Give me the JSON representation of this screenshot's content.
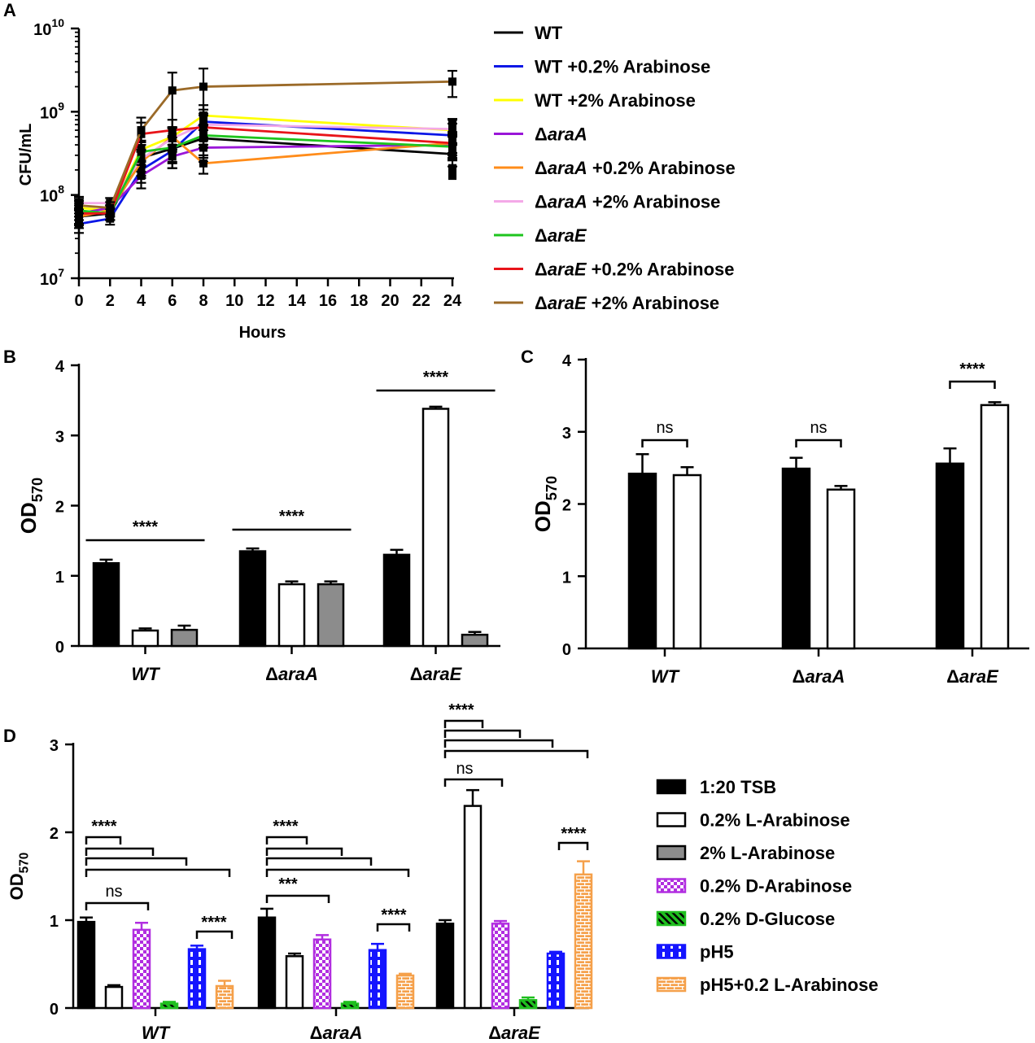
{
  "colors": {
    "black": "#000000",
    "white": "#ffffff",
    "gray": "#8c8c8c",
    "purple": "#b12ee0",
    "green": "#1fbf1f",
    "blue": "#1414ff",
    "orange": "#f5a04a",
    "WT": "#000000",
    "WT02": "#0b17e6",
    "WT2": "#ffff00",
    "A": "#9a16d8",
    "A02": "#ff8c1a",
    "A2": "#f4a9e8",
    "E": "#1ec41e",
    "E02": "#e8141a",
    "E2": "#9b6a28"
  },
  "chart_data": [
    {
      "panel": "A",
      "type": "line",
      "yscale": "log",
      "xlabel": "Hours",
      "ylabel": "CFU/mL",
      "xlim": [
        0,
        24
      ],
      "ylim": [
        10000000,
        10000000000
      ],
      "xticks": [
        "0",
        "2",
        "4",
        "6",
        "8",
        "10",
        "12",
        "14",
        "16",
        "18",
        "20",
        "22",
        "24"
      ],
      "yticks": [
        {
          "base": "10",
          "exp": "7"
        },
        {
          "base": "10",
          "exp": "8"
        },
        {
          "base": "10",
          "exp": "9"
        },
        {
          "base": "10",
          "exp": "10"
        }
      ],
      "x": [
        0,
        2,
        4,
        6,
        8,
        24
      ],
      "series": [
        {
          "name": "WT",
          "italic": "",
          "rest": "",
          "color": "WT",
          "values": [
            55000000,
            60000000,
            280000000,
            360000000,
            480000000,
            310000000
          ],
          "err": [
            15000000,
            10000000,
            120000000,
            150000000,
            200000000,
            90000000
          ]
        },
        {
          "name": "WT +0.2% Arabinose",
          "italic": "",
          "rest": "",
          "color": "WT02",
          "values": [
            45000000,
            52000000,
            200000000,
            340000000,
            760000000,
            520000000
          ],
          "err": [
            10000000,
            8000000,
            60000000,
            100000000,
            300000000,
            200000000
          ]
        },
        {
          "name": "WT +2% Arabinose",
          "italic": "",
          "rest": "",
          "color": "WT2",
          "values": [
            70000000,
            65000000,
            350000000,
            500000000,
            900000000,
            600000000
          ],
          "err": [
            15000000,
            10000000,
            100000000,
            150000000,
            300000000,
            200000000
          ]
        },
        {
          "name": "Δ",
          "italic": "araA",
          "rest": "",
          "color": "A",
          "values": [
            60000000,
            70000000,
            170000000,
            290000000,
            370000000,
            400000000
          ],
          "err": [
            15000000,
            10000000,
            50000000,
            80000000,
            120000000,
            120000000
          ]
        },
        {
          "name": "Δ",
          "italic": "araA",
          "rest": " +0.2% Arabinose",
          "color": "A02",
          "values": [
            55000000,
            65000000,
            250000000,
            500000000,
            240000000,
            420000000
          ],
          "err": [
            12000000,
            10000000,
            80000000,
            150000000,
            60000000,
            120000000
          ]
        },
        {
          "name": "Δ",
          "italic": "araA",
          "rest": " +2% Arabinose",
          "color": "A2",
          "values": [
            80000000,
            80000000,
            270000000,
            480000000,
            700000000,
            620000000
          ],
          "err": [
            15000000,
            12000000,
            80000000,
            150000000,
            250000000,
            200000000
          ]
        },
        {
          "name": "Δ",
          "italic": "araE",
          "rest": "",
          "color": "E",
          "values": [
            65000000,
            60000000,
            330000000,
            370000000,
            520000000,
            380000000
          ],
          "err": [
            15000000,
            10000000,
            100000000,
            120000000,
            150000000,
            120000000
          ]
        },
        {
          "name": "Δ",
          "italic": "araE",
          "rest": " +0.2% Arabinose",
          "color": "E02",
          "values": [
            60000000,
            60000000,
            540000000,
            600000000,
            650000000,
            420000000
          ],
          "err": [
            15000000,
            10000000,
            200000000,
            200000000,
            250000000,
            150000000
          ]
        },
        {
          "name": "Δ",
          "italic": "araE",
          "rest": " +2% Arabinose",
          "color": "E2",
          "values": [
            75000000,
            70000000,
            600000000,
            1800000000,
            2000000000,
            2300000000
          ],
          "err": [
            15000000,
            12000000,
            250000000,
            1150000000,
            1300000000,
            800000000
          ]
        }
      ],
      "markers": {
        "t8": [
          480000000,
          760000000,
          650000000
        ],
        "t24": [
          720000000,
          210000000,
          170000000
        ]
      }
    },
    {
      "panel": "B",
      "type": "bar",
      "ylabel": "OD",
      "ylabel_sub": "570",
      "ylim": [
        0,
        4
      ],
      "yticks": [
        "0",
        "1",
        "2",
        "3",
        "4"
      ],
      "categories": [
        {
          "pre": "",
          "it": "WT"
        },
        {
          "pre": "Δ",
          "it": "araA"
        },
        {
          "pre": "Δ",
          "it": "araE"
        }
      ],
      "series": [
        {
          "name": "1:20 TSB",
          "fill": "black",
          "values": [
            1.18,
            1.35,
            1.3
          ],
          "err": [
            0.05,
            0.04,
            0.07
          ]
        },
        {
          "name": "0.2% L-Arabinose",
          "fill": "white",
          "values": [
            0.22,
            0.88,
            3.38
          ],
          "err": [
            0.03,
            0.04,
            0.03
          ]
        },
        {
          "name": "2% L-Arabinose",
          "fill": "gray",
          "values": [
            0.23,
            0.88,
            0.16
          ],
          "err": [
            0.06,
            0.04,
            0.04
          ]
        }
      ],
      "sig": [
        "****",
        "****",
        "****"
      ]
    },
    {
      "panel": "C",
      "type": "bar",
      "ylabel": "OD",
      "ylabel_sub": "570",
      "ylim": [
        0,
        4
      ],
      "yticks": [
        "0",
        "1",
        "2",
        "3",
        "4"
      ],
      "categories": [
        {
          "pre": "",
          "it": "WT"
        },
        {
          "pre": "Δ",
          "it": "araA"
        },
        {
          "pre": "Δ",
          "it": "araE"
        }
      ],
      "series": [
        {
          "name": "1:20 TSB",
          "fill": "black",
          "values": [
            2.42,
            2.49,
            2.56
          ],
          "err": [
            0.27,
            0.15,
            0.21
          ]
        },
        {
          "name": "0.2% L-Arabinose",
          "fill": "white",
          "values": [
            2.4,
            2.2,
            3.37
          ],
          "err": [
            0.11,
            0.05,
            0.04
          ]
        }
      ],
      "sig": [
        "ns",
        "ns",
        "****"
      ]
    },
    {
      "panel": "D",
      "type": "bar",
      "ylabel": "OD",
      "ylabel_sub": "570",
      "ylim": [
        0,
        3
      ],
      "yticks": [
        "0",
        "1",
        "2",
        "3"
      ],
      "categories": [
        {
          "pre": "",
          "it": "WT"
        },
        {
          "pre": "Δ",
          "it": "araA"
        },
        {
          "pre": "Δ",
          "it": "araE"
        }
      ],
      "series": [
        {
          "name": "1:20 TSB",
          "fill": "black",
          "values": [
            0.98,
            1.03,
            0.96
          ],
          "err": [
            0.05,
            0.1,
            0.04
          ]
        },
        {
          "name": "0.2% L-Arabinose",
          "fill": "white",
          "values": [
            0.24,
            0.59,
            2.3
          ],
          "err": [
            0.02,
            0.03,
            0.18
          ]
        },
        {
          "name": "0.2% D-Arabinose",
          "fill": "purple",
          "values": [
            0.89,
            0.78,
            0.96
          ],
          "err": [
            0.08,
            0.05,
            0.03
          ]
        },
        {
          "name": "0.2% D-Glucose",
          "fill": "green",
          "values": [
            0.05,
            0.05,
            0.09
          ],
          "err": [
            0.02,
            0.02,
            0.03
          ]
        },
        {
          "name": "pH5",
          "fill": "blue",
          "values": [
            0.67,
            0.66,
            0.62
          ],
          "err": [
            0.04,
            0.07,
            0.02
          ]
        },
        {
          "name": "pH5+0.2 L-Arabinose",
          "fill": "orange",
          "values": [
            0.25,
            0.37,
            1.52
          ],
          "err": [
            0.06,
            0.02,
            0.15
          ]
        }
      ],
      "sig_texts": [
        "****",
        "ns",
        "****",
        "***",
        "****",
        "****",
        "ns",
        "****"
      ]
    }
  ],
  "panel_labels": [
    "A",
    "B",
    "C",
    "D"
  ],
  "legend_D": [
    {
      "label": "1:20 TSB",
      "fill": "black"
    },
    {
      "label": "0.2% L-Arabinose",
      "fill": "white"
    },
    {
      "label": "2% L-Arabinose",
      "fill": "gray"
    },
    {
      "label": "0.2% D-Arabinose",
      "fill": "purple"
    },
    {
      "label": "0.2% D-Glucose",
      "fill": "green"
    },
    {
      "label": "pH5",
      "fill": "blue"
    },
    {
      "label": "pH5+0.2 L-Arabinose",
      "fill": "orange"
    }
  ]
}
